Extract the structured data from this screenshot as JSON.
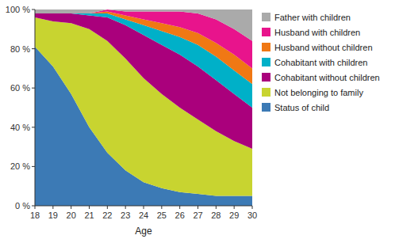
{
  "chart_data": {
    "type": "area",
    "stacked": true,
    "x_label": "Age",
    "x": [
      18,
      19,
      20,
      21,
      22,
      23,
      24,
      25,
      26,
      27,
      28,
      29,
      30
    ],
    "xlim": [
      18,
      30
    ],
    "xticks": [
      18,
      19,
      20,
      21,
      22,
      23,
      24,
      25,
      26,
      27,
      28,
      29,
      30
    ],
    "ylim": [
      0,
      100
    ],
    "yticks": [
      {
        "value": 0,
        "label": "0 %"
      },
      {
        "value": 20,
        "label": "20 %"
      },
      {
        "value": 40,
        "label": "40 %"
      },
      {
        "value": 60,
        "label": "60 %"
      },
      {
        "value": 80,
        "label": "80 %"
      },
      {
        "value": 100,
        "label": "100 %"
      }
    ],
    "grid": false,
    "legend": "right",
    "series": [
      {
        "name": "Status of child",
        "color": "#3c7ab5",
        "values": [
          81,
          71,
          57,
          40,
          27,
          18,
          12,
          9,
          7,
          6,
          5,
          5,
          5
        ]
      },
      {
        "name": "Not belonging to family",
        "color": "#c8d430",
        "values": [
          15,
          23,
          36,
          50,
          57,
          57,
          53,
          48,
          43,
          38,
          33,
          28,
          24
        ]
      },
      {
        "name": "Cohabitant without children",
        "color": "#aa007c",
        "values": [
          2,
          4,
          5,
          7,
          12,
          17,
          22,
          25,
          27,
          27,
          26,
          24,
          21
        ]
      },
      {
        "name": "Cohabitant with children",
        "color": "#00b0c8",
        "values": [
          0,
          0,
          0,
          1,
          2,
          3,
          5,
          7,
          9,
          11,
          12,
          12,
          12
        ]
      },
      {
        "name": "Husband without children",
        "color": "#f07814",
        "values": [
          0,
          0,
          0,
          0,
          1,
          2,
          3,
          4,
          5,
          6,
          7,
          8,
          8
        ]
      },
      {
        "name": "Husband with children",
        "color": "#e8148c",
        "values": [
          0,
          0,
          0,
          0,
          1,
          2,
          4,
          6,
          8,
          10,
          12,
          13,
          14
        ]
      },
      {
        "name": "Father with children",
        "color": "#aaaaaa",
        "values": [
          2,
          2,
          2,
          2,
          0,
          1,
          1,
          1,
          1,
          2,
          5,
          10,
          16
        ]
      }
    ]
  }
}
